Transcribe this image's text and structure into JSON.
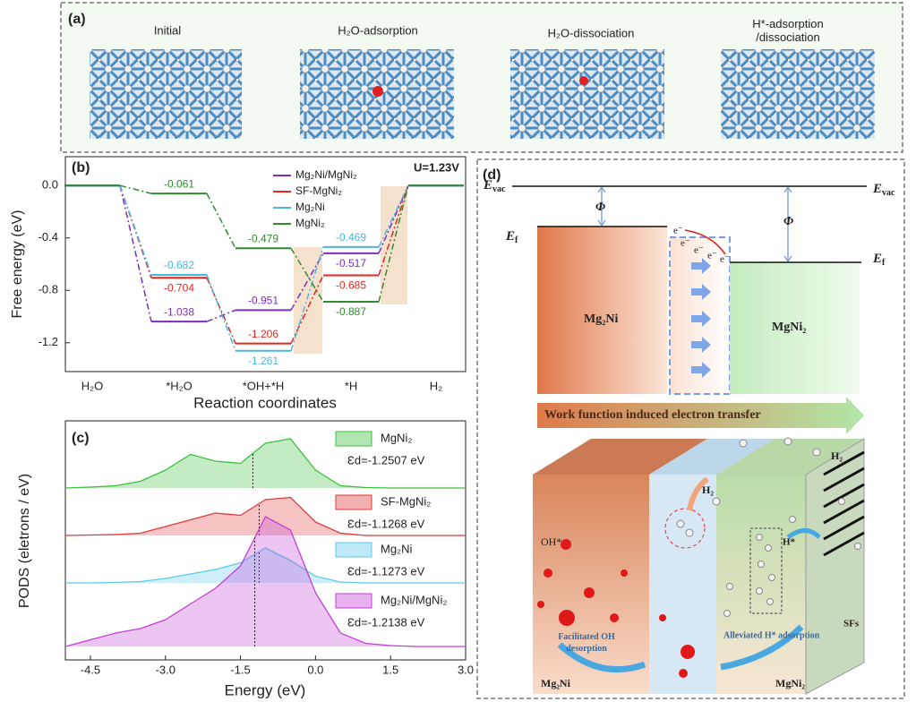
{
  "panel_a": {
    "label": "(a)",
    "captions": [
      "Initial",
      "H₂O-adsorption",
      "H₂O-dissociation",
      [
        "H*-adsorption",
        "/dissociation"
      ]
    ]
  },
  "chart_data": [
    {
      "type": "step",
      "panel_label": "(b)",
      "annotation": "U=1.23V",
      "xlabel": "Reaction coordinates",
      "ylabel": "Free energy (eV)",
      "categories": [
        "H₂O",
        "*H₂O",
        "*OH+*H",
        "*H",
        "H₂"
      ],
      "series": [
        {
          "name": "Mg₂Ni/MgNi₂",
          "color": "#7a2fc0",
          "values": [
            0,
            -1.038,
            -0.951,
            -0.517,
            0
          ]
        },
        {
          "name": "SF-MgNi₂",
          "color": "#e3261f",
          "values": [
            0,
            -0.704,
            -1.206,
            -0.685,
            0
          ]
        },
        {
          "name": "Mg₂Ni",
          "color": "#4bb5e6",
          "values": [
            0,
            -0.682,
            -1.261,
            -0.469,
            0
          ]
        },
        {
          "name": "MgNi₂",
          "color": "#2e8b2e",
          "values": [
            0,
            -0.061,
            -0.479,
            -0.887,
            0
          ]
        }
      ],
      "ylim": [
        -1.42,
        0.22
      ],
      "yticks": [
        {
          "value": 0,
          "label": "0.0"
        },
        -0.4,
        -0.8,
        -1.2
      ]
    },
    {
      "type": "area",
      "panel_label": "(c)",
      "xlabel": "Energy (eV)",
      "ylabel": "PODS (eletrons / eV)",
      "x": [
        -5,
        -4.5,
        -4,
        -3.5,
        -3,
        -2.5,
        -2,
        -1.5,
        -1,
        -0.5,
        0,
        0.5,
        1,
        1.5,
        2,
        2.5,
        3
      ],
      "xlim": [
        -5,
        3
      ],
      "xticks": [
        -4.5,
        {
          "value": -3,
          "label": "-3.0"
        },
        -1.5,
        {
          "value": 0,
          "label": "0.0"
        },
        1.5,
        {
          "value": 3,
          "label": "3.0"
        }
      ],
      "series": [
        {
          "name": "MgNi₂",
          "color": "#3cbf3c",
          "values": [
            0,
            0.02,
            0.05,
            0.15,
            0.4,
            0.75,
            0.6,
            0.55,
            1.0,
            1.1,
            0.4,
            0.05,
            0.01,
            0,
            0,
            0,
            0
          ],
          "d_band_center": -1.2507,
          "d_band_label": "Ɛd=-1.2507 eV"
        },
        {
          "name": "SF-MgNi₂",
          "color": "#e03a3a",
          "values": [
            0,
            0.01,
            0.02,
            0.05,
            0.2,
            0.35,
            0.5,
            0.45,
            0.8,
            0.85,
            0.3,
            0.05,
            0,
            0,
            0,
            0,
            0
          ],
          "d_band_center": -1.1268,
          "d_band_label": "Ɛd=-1.1268 eV"
        },
        {
          "name": "Mg₂Ni",
          "color": "#5ccbea",
          "values": [
            0,
            0,
            0.01,
            0.03,
            0.1,
            0.2,
            0.3,
            0.45,
            0.78,
            0.5,
            0.15,
            0.02,
            0,
            0,
            0,
            0,
            0
          ],
          "d_band_center": -1.1273,
          "d_band_label": "Ɛd=-1.1273 eV"
        },
        {
          "name": "Mg₂Ni/MgNi₂",
          "color": "#c43fd6",
          "values": [
            0,
            0.15,
            0.3,
            0.4,
            0.6,
            0.95,
            1.3,
            1.8,
            2.9,
            2.6,
            1.2,
            0.3,
            0.07,
            0.02,
            0,
            0,
            0
          ],
          "d_band_center": -1.2138,
          "d_band_label": "Ɛd=-1.2138 eV"
        }
      ]
    }
  ],
  "panel_d": {
    "label": "(d)",
    "vacuum_labels": [
      {
        "symbol": "E",
        "sub": "vac"
      },
      {
        "symbol": "E",
        "sub": "vac"
      }
    ],
    "fermi_labels": [
      {
        "symbol": "E",
        "sub": "f"
      },
      {
        "symbol": "E",
        "sub": "f"
      }
    ],
    "work_function_labels": [
      "Φ",
      "Φ"
    ],
    "electron_labels": [
      "e⁻",
      "e⁻",
      "e⁻",
      "e⁻",
      "e⁻"
    ],
    "materials": [
      "Mg₂Ni",
      "MgNi₂"
    ],
    "banner": "Work function induced electron transfer",
    "scheme": {
      "oh": "OH*",
      "h2": [
        "H₂",
        "H₂"
      ],
      "h": "H*",
      "sfs": "SFs",
      "left_caption": [
        "Facilitated OH",
        "desorption"
      ],
      "right_caption": "Alleviated H* adsorption",
      "materials": [
        "Mg₂Ni",
        "MgNi₂"
      ]
    }
  }
}
